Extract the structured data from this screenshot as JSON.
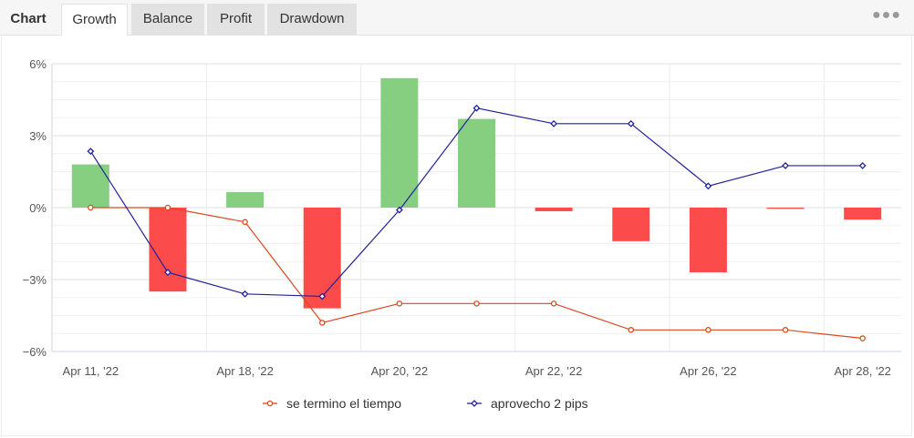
{
  "tabs": {
    "chart_title": "Chart",
    "items": [
      "Growth",
      "Balance",
      "Profit",
      "Drawdown"
    ],
    "active": "Growth"
  },
  "chart_data": {
    "type": "bar",
    "categories": [
      "Apr 11, '22",
      "",
      "Apr 18, '22",
      "",
      "Apr 20, '22",
      "",
      "Apr 22, '22",
      "",
      "Apr 26, '22",
      "",
      "Apr 28, '22"
    ],
    "bars": [
      1.8,
      -3.5,
      0.65,
      -4.2,
      5.4,
      3.7,
      -0.15,
      -1.4,
      -2.7,
      -0.05,
      -0.5
    ],
    "bar_colors": {
      "positive": "#86cf80",
      "negative": "#fc4b4b"
    },
    "series": [
      {
        "name": "se termino el tiempo",
        "type": "line",
        "color": "#d84a21",
        "values": [
          0,
          0,
          -0.6,
          -4.8,
          -4.0,
          -4.0,
          -4.0,
          -5.1,
          -5.1,
          -5.1,
          -5.45
        ]
      },
      {
        "name": "aprovecho 2 pips",
        "type": "line",
        "color": "#22229a",
        "values": [
          2.35,
          -2.7,
          -3.6,
          -3.7,
          -0.1,
          4.15,
          3.5,
          3.5,
          0.9,
          1.75,
          1.75
        ]
      }
    ],
    "y_ticks": [
      "6%",
      "3%",
      "0%",
      "−3%",
      "−6%"
    ],
    "y_tick_values": [
      6,
      3,
      0,
      -3,
      -6
    ],
    "x_tick_labels": [
      "Apr 11, '22",
      "Apr 18, '22",
      "Apr 20, '22",
      "Apr 22, '22",
      "Apr 26, '22",
      "Apr 28, '22"
    ],
    "x_tick_index": [
      0,
      2,
      4,
      6,
      8,
      10
    ],
    "ylim": [
      -6,
      6
    ],
    "grid": true,
    "legend_position": "bottom"
  }
}
